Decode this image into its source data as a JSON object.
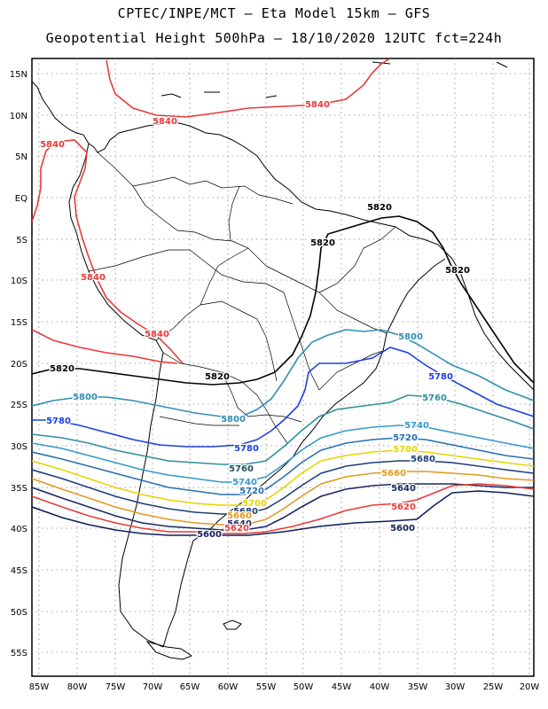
{
  "title_line1": "CPTEC/INPE/MCT –  Eta Model 15km – GFS",
  "title_line2": "Geopotential Height 500hPa – 18/10/2020 12UTC fct=224h",
  "lat_labels": [
    "15N",
    "10N",
    "5N",
    "EQ",
    "5S",
    "10S",
    "15S",
    "20S",
    "25S",
    "30S",
    "35S",
    "40S",
    "45S",
    "50S",
    "55S"
  ],
  "lon_labels": [
    "85W",
    "80W",
    "75W",
    "70W",
    "65W",
    "60W",
    "55W",
    "50W",
    "45W",
    "40W",
    "35W",
    "30W",
    "25W",
    "20W"
  ],
  "contour_labels": [
    {
      "text": "5840",
      "color": "#e83a3a"
    },
    {
      "text": "5840",
      "color": "#e83a3a"
    },
    {
      "text": "5840",
      "color": "#e83a3a"
    },
    {
      "text": "5840",
      "color": "#e83a3a"
    },
    {
      "text": "5840",
      "color": "#e83a3a"
    },
    {
      "text": "5820",
      "color": "#000000"
    },
    {
      "text": "5820",
      "color": "#000000"
    },
    {
      "text": "5820",
      "color": "#000000"
    },
    {
      "text": "5820",
      "color": "#000000"
    },
    {
      "text": "5820",
      "color": "#000000"
    },
    {
      "text": "5800",
      "color": "#2f8fb4"
    },
    {
      "text": "5800",
      "color": "#2f8fb4"
    },
    {
      "text": "5800",
      "color": "#2f8fb4"
    },
    {
      "text": "5780",
      "color": "#1e40e0"
    },
    {
      "text": "5780",
      "color": "#1e40e0"
    },
    {
      "text": "5780",
      "color": "#1e40e0"
    },
    {
      "text": "5760",
      "color": "#2f8f9f"
    },
    {
      "text": "5760",
      "color": "#24505f"
    },
    {
      "text": "5740",
      "color": "#3399cc"
    },
    {
      "text": "5740",
      "color": "#3399cc"
    },
    {
      "text": "5720",
      "color": "#2a6fb0"
    },
    {
      "text": "5720",
      "color": "#2a6fb0"
    },
    {
      "text": "5700",
      "color": "#e6d400"
    },
    {
      "text": "5700",
      "color": "#e6d400"
    },
    {
      "text": "5680",
      "color": "#1d3f7a"
    },
    {
      "text": "5680",
      "color": "#1d3f7a"
    },
    {
      "text": "5660",
      "color": "#e09a20"
    },
    {
      "text": "5660",
      "color": "#e09a20"
    },
    {
      "text": "5640",
      "color": "#1a2a60"
    },
    {
      "text": "5640",
      "color": "#1a2a60"
    },
    {
      "text": "5620",
      "color": "#e83a3a"
    },
    {
      "text": "5620",
      "color": "#e83a3a"
    },
    {
      "text": "5600",
      "color": "#0f1f5a"
    },
    {
      "text": "5600",
      "color": "#0f1f5a"
    }
  ]
}
